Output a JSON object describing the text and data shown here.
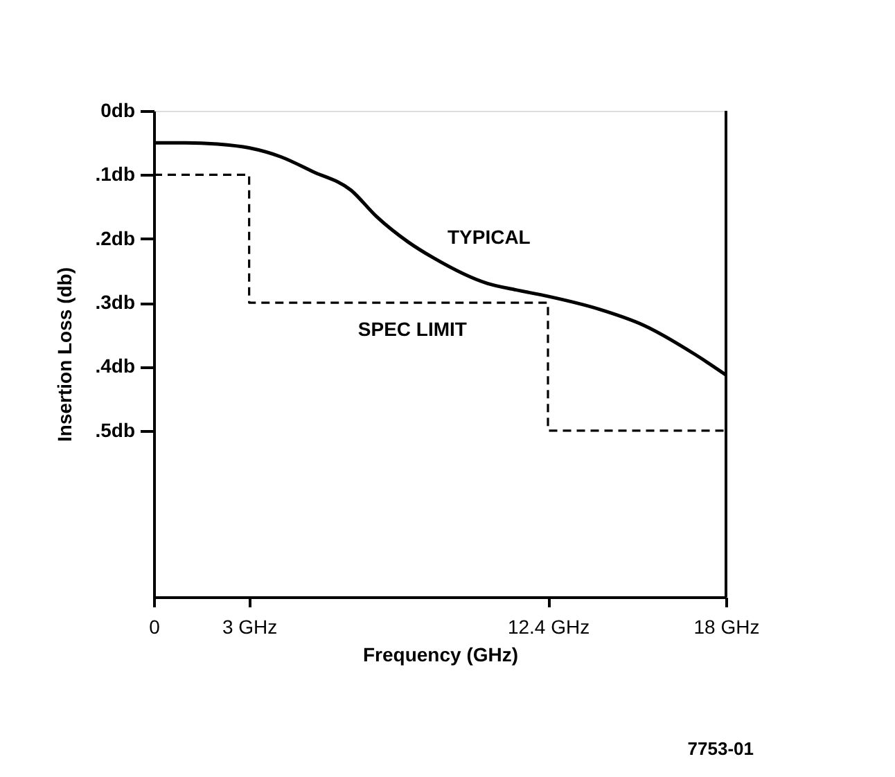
{
  "chart_data": {
    "type": "line",
    "xlabel": "Frequency (GHz)",
    "ylabel": "Insertion Loss (db)",
    "xlim": [
      0,
      18
    ],
    "xticks": [
      0,
      {
        "value": 3,
        "label": "3 GHz"
      },
      {
        "value": 12.4,
        "label": "12.4 GHz"
      },
      {
        "value": 18,
        "label": "18 GHz"
      }
    ],
    "ylim": [
      0.76,
      0
    ],
    "yticks": [
      {
        "value": 0,
        "label": "0db"
      },
      {
        "value": 0.1,
        "label": ".1db"
      },
      {
        "value": 0.2,
        "label": ".2db"
      },
      {
        "value": 0.3,
        "label": ".3db"
      },
      {
        "value": 0.4,
        "label": ".4db"
      },
      {
        "value": 0.5,
        "label": ".5db"
      }
    ],
    "series": [
      {
        "name": "TYPICAL",
        "color": "#000000",
        "line_style": "solid",
        "x": [
          0,
          1,
          2,
          3,
          4,
          5,
          6.2,
          7,
          8,
          8.8,
          10.5,
          11.4,
          12.4,
          14,
          15.4,
          17,
          18
        ],
        "values": [
          0.05,
          0.05,
          0.052,
          0.058,
          0.072,
          0.095,
          0.124,
          0.165,
          0.205,
          0.23,
          0.27,
          0.28,
          0.29,
          0.31,
          0.335,
          0.38,
          0.413
        ]
      },
      {
        "name": "SPEC LIMIT",
        "type": "step",
        "color": "#000000",
        "line_style": "dashed",
        "x": [
          0,
          3,
          12.4,
          18
        ],
        "values": [
          0.1,
          0.3,
          0.5,
          0.5
        ]
      }
    ],
    "legend": false,
    "marker": "none",
    "annotations": [
      "7753-01"
    ]
  }
}
